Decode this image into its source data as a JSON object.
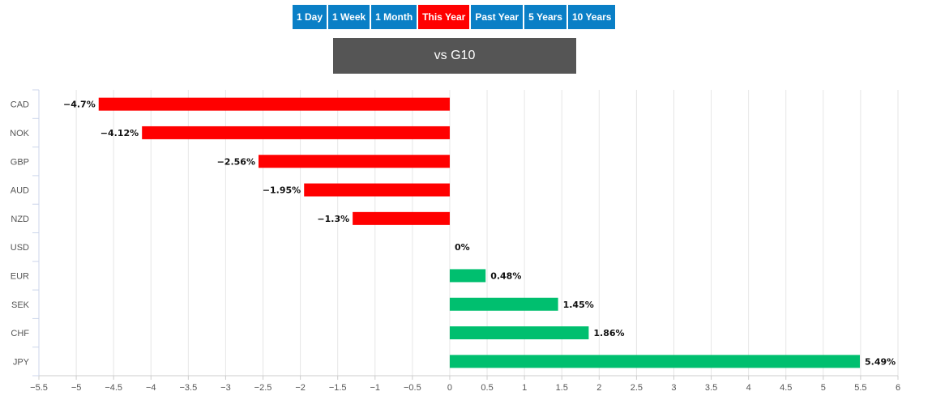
{
  "tabs": [
    {
      "label": "1 Day",
      "active": false
    },
    {
      "label": "1 Week",
      "active": false
    },
    {
      "label": "1 Month",
      "active": false
    },
    {
      "label": "This Year",
      "active": true
    },
    {
      "label": "Past Year",
      "active": false
    },
    {
      "label": "5 Years",
      "active": false
    },
    {
      "label": "10 Years",
      "active": false
    }
  ],
  "subtitle": "vs G10",
  "colors": {
    "tab": "#0a7fc6",
    "tab_active": "#ff0000",
    "negative": "#ff0000",
    "positive": "#00bf6f",
    "subtitle_bg": "#555555"
  },
  "chart_data": {
    "type": "bar",
    "orientation": "horizontal",
    "categories": [
      "CAD",
      "NOK",
      "GBP",
      "AUD",
      "NZD",
      "USD",
      "EUR",
      "SEK",
      "CHF",
      "JPY"
    ],
    "values": [
      -4.7,
      -4.12,
      -2.56,
      -1.95,
      -1.3,
      0,
      0.48,
      1.45,
      1.86,
      5.49
    ],
    "data_labels": [
      "−4.7%",
      "−4.12%",
      "−2.56%",
      "−1.95%",
      "−1.3%",
      "0%",
      "0.48%",
      "1.45%",
      "1.86%",
      "5.49%"
    ],
    "x_ticks": [
      -5.5,
      -5,
      -4.5,
      -4,
      -3.5,
      -3,
      -2.5,
      -2,
      -1.5,
      -1,
      -0.5,
      0,
      0.5,
      1,
      1.5,
      2,
      2.5,
      3,
      3.5,
      4,
      4.5,
      5,
      5.5,
      6
    ],
    "x_tick_labels": [
      "−5.5",
      "−5",
      "−4.5",
      "−4",
      "−3.5",
      "−3",
      "−2.5",
      "−2",
      "−1.5",
      "−1",
      "−0.5",
      "0",
      "0.5",
      "1",
      "1.5",
      "2",
      "2.5",
      "3",
      "3.5",
      "4",
      "4.5",
      "5",
      "5.5",
      "6"
    ],
    "xlim": [
      -5.5,
      6
    ],
    "grid": true,
    "title": "",
    "xlabel": "",
    "ylabel": ""
  }
}
